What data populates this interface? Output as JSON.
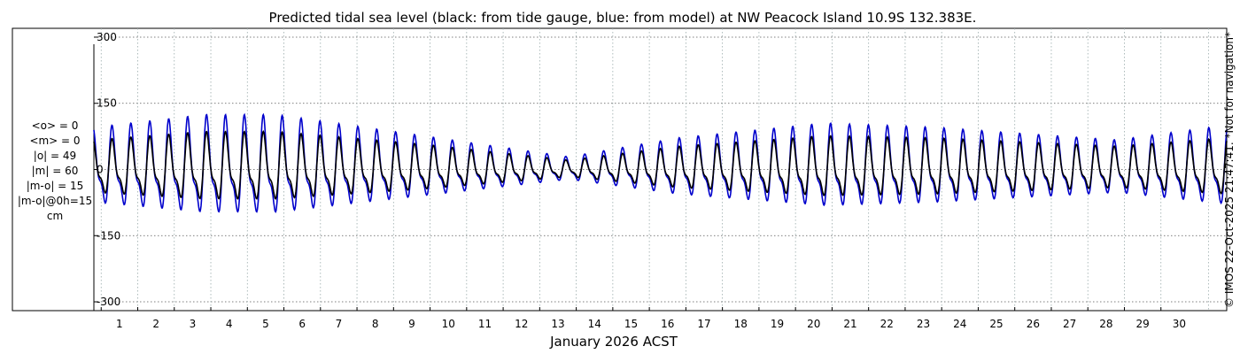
{
  "chart_data": {
    "type": "line",
    "title": "Predicted tidal sea level (black: from tide gauge, blue: from model) at NW Peacock Island 10.9S 132.383E.",
    "xlabel": "January 2026 ACST",
    "ylabel": "",
    "xlim": [
      0.3,
      31.3
    ],
    "ylim": [
      -320,
      320
    ],
    "yticks": [
      -300,
      -150,
      0,
      150,
      300
    ],
    "xticks": [
      "1",
      "2",
      "3",
      "4",
      "5",
      "6",
      "7",
      "8",
      "9",
      "10",
      "11",
      "12",
      "13",
      "14",
      "15",
      "16",
      "17",
      "18",
      "19",
      "20",
      "21",
      "22",
      "23",
      "24",
      "25",
      "26",
      "27",
      "28",
      "29",
      "30"
    ],
    "grid": true,
    "series": [
      {
        "name": "from tide gauge",
        "color": "#000000",
        "amp_envelope": [
          [
            0.3,
            70
          ],
          [
            3.3,
            90
          ],
          [
            5.3,
            90
          ],
          [
            9.3,
            60
          ],
          [
            13.3,
            22
          ],
          [
            16.3,
            55
          ],
          [
            20.3,
            80
          ],
          [
            23.3,
            75
          ],
          [
            28.3,
            55
          ],
          [
            31.3,
            75
          ]
        ]
      },
      {
        "name": "from model",
        "color": "#0000cc",
        "amp_envelope": [
          [
            0.3,
            100
          ],
          [
            3.3,
            130
          ],
          [
            5.3,
            130
          ],
          [
            9.3,
            80
          ],
          [
            13.3,
            30
          ],
          [
            16.3,
            75
          ],
          [
            20.3,
            110
          ],
          [
            23.3,
            100
          ],
          [
            28.3,
            70
          ],
          [
            31.3,
            105
          ]
        ]
      }
    ],
    "stats": [
      "<o> = 0",
      "<m> = 0",
      "|o| = 49",
      "|m| = 60",
      "|m-o| = 15",
      "|m-o|@0h=15",
      "cm"
    ],
    "watermark": "© IMOS 22-Oct-2025 21:47:41. *Not for navigation*"
  }
}
